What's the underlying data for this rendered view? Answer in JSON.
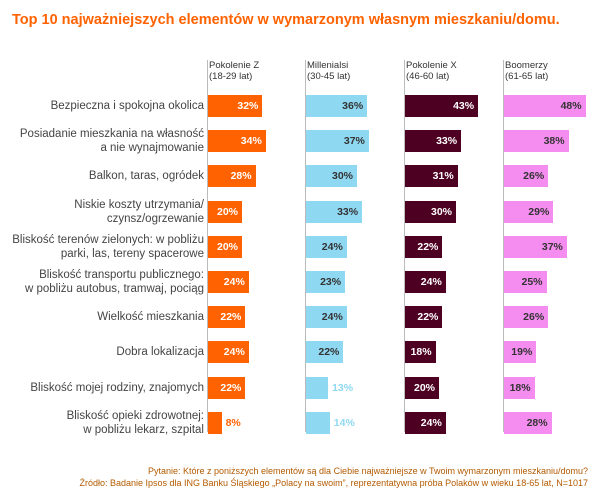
{
  "chart_data": {
    "type": "bar",
    "title": "Top 10 najważniejszych elementów w wymarzonym własnym mieszkaniu/domu.",
    "categories": [
      "Bezpieczna i spokojna okolica",
      "Posiadanie mieszkania na własność\na nie wynajmowanie",
      "Balkon, taras, ogródek",
      "Niskie koszty utrzymania/\nczynsz/ogrzewanie",
      "Bliskość terenów zielonych: w pobliżu\nparki, las, tereny spacerowe",
      "Bliskość transportu publicznego:\nw pobliżu autobus, tramwaj, pociąg",
      "Wielkość mieszkania",
      "Dobra lokalizacja",
      "Bliskość mojej rodziny, znajomych",
      "Bliskość opieki zdrowotnej:\nw pobliżu lekarz, szpital"
    ],
    "series": [
      {
        "name": "Pokolenie Z\n(18-29 lat)",
        "color": "#ff6200",
        "values": [
          32,
          34,
          28,
          20,
          20,
          24,
          22,
          24,
          22,
          8
        ],
        "value_labels": [
          "32%",
          "34%",
          "28%",
          "20%",
          "20%",
          "24%",
          "22%",
          "24%",
          "22%",
          "8%"
        ]
      },
      {
        "name": "Millenialsi\n(30-45 lat)",
        "color": "#8fd8f2",
        "values": [
          36,
          37,
          30,
          33,
          24,
          23,
          24,
          22,
          13,
          14
        ],
        "value_labels": [
          "36%",
          "37%",
          "30%",
          "33%",
          "24%",
          "23%",
          "24%",
          "22%",
          "13%",
          "14%"
        ]
      },
      {
        "name": "Pokolenie X\n(46-60 lat)",
        "color": "#4d0022",
        "values": [
          43,
          33,
          31,
          30,
          22,
          24,
          22,
          18,
          20,
          24
        ],
        "value_labels": [
          "43%",
          "33%",
          "31%",
          "30%",
          "22%",
          "24%",
          "22%",
          "18%",
          "20%",
          "24%"
        ]
      },
      {
        "name": "Boomerzy\n(61-65 lat)",
        "color": "#f58cf0",
        "values": [
          48,
          38,
          26,
          29,
          37,
          25,
          26,
          19,
          18,
          28
        ],
        "value_labels": [
          "48%",
          "38%",
          "26%",
          "29%",
          "37%",
          "25%",
          "26%",
          "19%",
          "18%",
          "28%"
        ]
      }
    ],
    "notes": [
      "Pytanie: Które z poniższych elementów są dla Ciebie najważniejsze w Twoim wymarzonym mieszkaniu/domu?",
      "Źródło: Badanie Ipsos dla ING Banku Śląskiego „Polacy na swoim”, reprezentatywna próba Polaków w wieku 18-65 lat, N=1017"
    ]
  }
}
